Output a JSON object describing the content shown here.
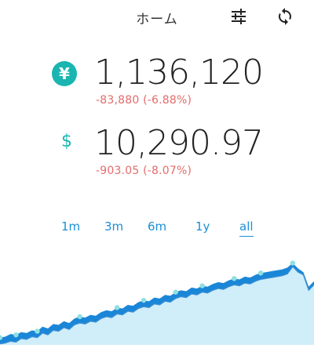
{
  "header": {
    "title": "ホーム",
    "filter_icon": "sliders-icon",
    "refresh_icon": "refresh-icon"
  },
  "balances": {
    "jpy": {
      "symbol": "¥",
      "amount": "1,136,120",
      "change": "-83,880 (-6.88%)"
    },
    "usd": {
      "symbol": "$",
      "amount": "10,290.97",
      "change": "-903.05 (-8.07%)"
    }
  },
  "ranges": {
    "items": [
      "1m",
      "3m",
      "6m",
      "1y",
      "all"
    ],
    "active": "all"
  },
  "colors": {
    "accent": "#1ab5b1",
    "link": "#1a8fd8",
    "negative": "#e56b6b",
    "chart_fill_light": "#cfeefa",
    "chart_fill_dark": "#1a86d8",
    "chart_line": "#3f90d0",
    "marker": "#8fe0e0"
  },
  "chart_data": {
    "type": "area",
    "x": [
      0,
      1,
      2,
      3,
      4,
      5,
      6,
      7,
      8,
      9,
      10,
      11,
      12,
      13,
      14,
      15,
      16,
      17,
      18,
      19,
      20,
      21,
      22,
      23,
      24,
      25,
      26,
      27,
      28,
      29,
      30,
      31,
      32,
      33,
      34,
      35,
      36,
      37,
      38,
      39,
      40,
      41,
      42,
      43,
      44,
      45,
      46,
      47,
      48,
      49,
      50,
      51,
      52,
      53,
      54,
      55,
      56,
      57,
      58,
      59
    ],
    "series": [
      {
        "values": [
          1,
          2,
          4,
          3,
          7,
          6,
          9,
          8,
          13,
          11,
          16,
          15,
          19,
          17,
          22,
          24,
          23,
          26,
          25,
          29,
          31,
          30,
          34,
          33,
          37,
          36,
          40,
          42,
          41,
          45,
          44,
          48,
          47,
          51,
          53,
          52,
          56,
          55,
          58,
          57,
          60,
          62,
          61,
          64,
          66,
          65,
          68,
          67,
          70,
          72,
          73,
          74,
          75,
          76,
          78,
          86,
          80,
          77,
          60,
          66
        ]
      },
      {
        "values": [
          8,
          9,
          12,
          11,
          14,
          13,
          16,
          15,
          20,
          18,
          23,
          22,
          26,
          24,
          29,
          31,
          30,
          33,
          32,
          36,
          38,
          37,
          41,
          40,
          44,
          43,
          47,
          49,
          48,
          52,
          51,
          55,
          54,
          58,
          60,
          59,
          63,
          62,
          65,
          64,
          67,
          69,
          68,
          71,
          73,
          72,
          75,
          74,
          77,
          79,
          80,
          81,
          82,
          83,
          85,
          90,
          84,
          80,
          64,
          70
        ]
      }
    ],
    "markers": [
      0,
      3,
      7,
      15,
      22,
      27,
      33,
      38,
      44,
      49,
      55
    ],
    "ylim": [
      0,
      100
    ]
  }
}
